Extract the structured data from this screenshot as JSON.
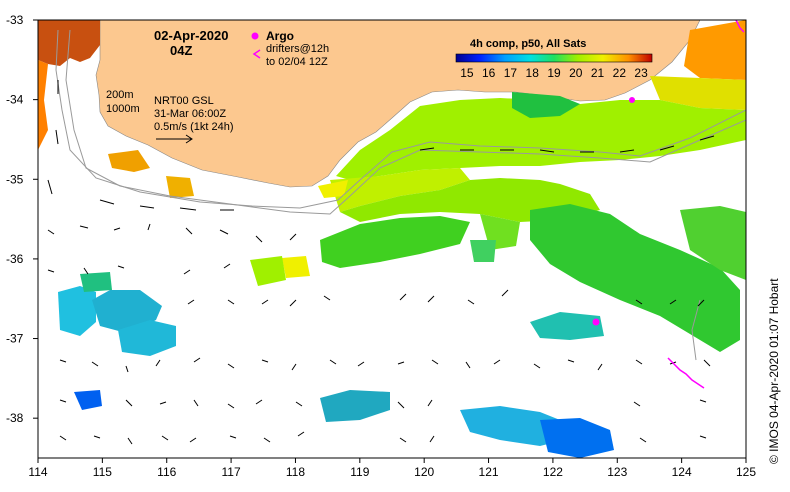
{
  "header": {
    "date": "02-Apr-2020",
    "time": "04Z",
    "argo_label": "Argo",
    "drifters_line1": "drifters@12h",
    "drifters_line2": "to 02/04 12Z",
    "colorbar_title": "4h comp, p50, All Sats"
  },
  "colorbar": {
    "ticks": [
      "15",
      "16",
      "17",
      "18",
      "19",
      "20",
      "21",
      "22",
      "23"
    ],
    "min": 14.5,
    "max": 23.5
  },
  "legend": {
    "depth_1": "200m",
    "depth_2": "1000m",
    "product": "NRT00 GSL",
    "product_date": "31-Mar 06:00Z",
    "scale_label": "0.5m/s (1kt 24h)"
  },
  "axes": {
    "x_ticks": [
      "114",
      "115",
      "116",
      "117",
      "118",
      "119",
      "120",
      "121",
      "122",
      "123",
      "124",
      "125"
    ],
    "y_ticks": [
      "-33",
      "-34",
      "-35",
      "-36",
      "-37",
      "-38"
    ],
    "xlim": [
      114,
      125
    ],
    "ylim": [
      -38.5,
      -33
    ]
  },
  "credit": "© IMOS 04-Apr-2020 01:07 Hobart",
  "colors": {
    "land": "#fcc88f",
    "argo": "#ff00ff",
    "sst_cold": "#0040ff",
    "sst_warm": "#d02000"
  }
}
